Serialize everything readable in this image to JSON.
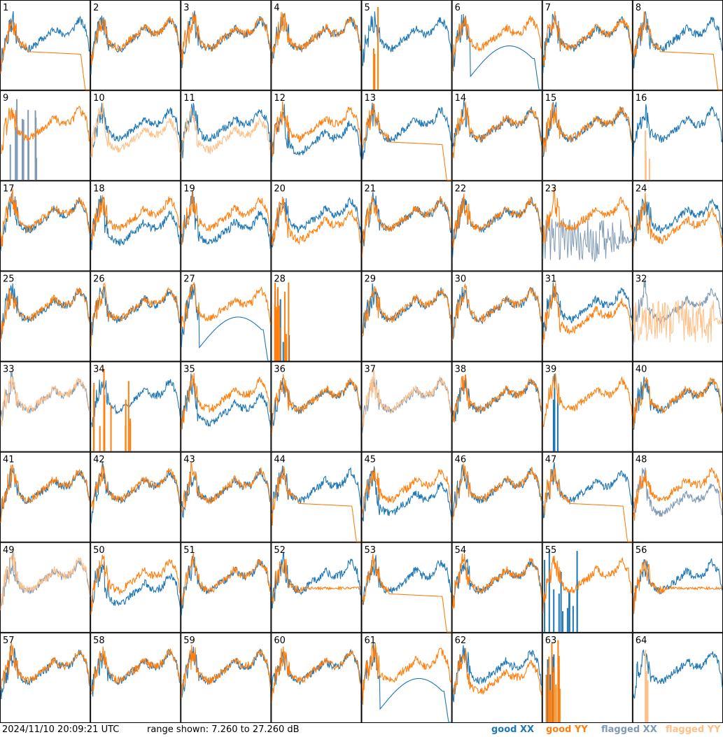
{
  "footer": {
    "timestamp": "2024/11/10 20:09:21 UTC",
    "range_text": "range shown: 7.260 to 27.260 dB"
  },
  "legend": [
    {
      "label": "good XX",
      "color": "#1f77b4"
    },
    {
      "label": "good YY",
      "color": "#ff7f0e"
    },
    {
      "label": "flagged XX",
      "color": "#7f9ab5"
    },
    {
      "label": "flagged YY",
      "color": "#ffbf86"
    }
  ],
  "chart_data": {
    "type": "line",
    "layout": "small-multiples 8x8",
    "x_axis": "frequency channel (unlabeled)",
    "y_range_db": [
      7.26,
      27.26
    ],
    "panel_labels": [
      "1",
      "2",
      "3",
      "4",
      "5",
      "6",
      "7",
      "8",
      "9",
      "10",
      "11",
      "12",
      "13",
      "14",
      "15",
      "16",
      "17",
      "18",
      "19",
      "20",
      "21",
      "22",
      "23",
      "24",
      "25",
      "26",
      "27",
      "28",
      "29",
      "30",
      "31",
      "32",
      "33",
      "34",
      "35",
      "36",
      "37",
      "38",
      "39",
      "40",
      "41",
      "42",
      "43",
      "44",
      "45",
      "46",
      "47",
      "48",
      "49",
      "50",
      "51",
      "52",
      "53",
      "54",
      "55",
      "56",
      "57",
      "58",
      "59",
      "60",
      "61",
      "62",
      "63",
      "64"
    ],
    "panels": {
      "1": {
        "xx": "good",
        "yy": "good",
        "pattern": "yy-rolloff"
      },
      "5": {
        "xx": "good",
        "yy": "good",
        "pattern": "yy-spike"
      },
      "6": {
        "xx": "good",
        "yy": "good",
        "pattern": "xx-dip"
      },
      "8": {
        "xx": "good",
        "yy": "good",
        "pattern": "yy-rolloff"
      },
      "9": {
        "xx": "flagged",
        "yy": "good",
        "pattern": "xx-spikes"
      },
      "10": {
        "xx": "good",
        "yy": "flagged",
        "pattern": "yy-lower"
      },
      "11": {
        "xx": "good",
        "yy": "flagged",
        "pattern": "yy-lower"
      },
      "12": {
        "xx": "good",
        "yy": "good",
        "pattern": "xx-lower"
      },
      "13": {
        "xx": "good",
        "yy": "good",
        "pattern": "yy-rolloff"
      },
      "16": {
        "xx": "good",
        "yy": "flagged",
        "pattern": "yy-spike"
      },
      "18": {
        "xx": "good",
        "yy": "good",
        "pattern": "xx-lower"
      },
      "19": {
        "xx": "good",
        "yy": "good",
        "pattern": "xx-lower"
      },
      "20": {
        "xx": "good",
        "yy": "good",
        "pattern": "yy-lower"
      },
      "23": {
        "xx": "flagged",
        "yy": "good",
        "pattern": "xx-noise"
      },
      "24": {
        "xx": "good",
        "yy": "good",
        "pattern": "yy-lower"
      },
      "27": {
        "xx": "good",
        "yy": "good",
        "pattern": "xx-dip"
      },
      "28": {
        "xx": "good",
        "yy": "good",
        "pattern": "spikes-only"
      },
      "31": {
        "xx": "good",
        "yy": "good",
        "pattern": "yy-lower"
      },
      "32": {
        "xx": "flagged",
        "yy": "flagged",
        "pattern": "yy-noise"
      },
      "33": {
        "xx": "flagged",
        "yy": "flagged",
        "pattern": "normal"
      },
      "34": {
        "xx": "good",
        "yy": "good",
        "pattern": "yy-spikes"
      },
      "35": {
        "xx": "good",
        "yy": "good",
        "pattern": "xx-lower"
      },
      "37": {
        "xx": "flagged",
        "yy": "flagged",
        "pattern": "normal"
      },
      "39": {
        "xx": "good",
        "yy": "good",
        "pattern": "xx-spike"
      },
      "44": {
        "xx": "good",
        "yy": "good",
        "pattern": "yy-rolloff"
      },
      "45": {
        "xx": "good",
        "yy": "good",
        "pattern": "xx-lower"
      },
      "47": {
        "xx": "good",
        "yy": "good",
        "pattern": "yy-rolloff"
      },
      "48": {
        "xx": "flagged",
        "yy": "good",
        "pattern": "xx-lower"
      },
      "49": {
        "xx": "flagged",
        "yy": "flagged",
        "pattern": "normal"
      },
      "50": {
        "xx": "good",
        "yy": "good",
        "pattern": "xx-lower"
      },
      "52": {
        "xx": "good",
        "yy": "good",
        "pattern": "yy-flat"
      },
      "53": {
        "xx": "good",
        "yy": "good",
        "pattern": "yy-rolloff"
      },
      "55": {
        "xx": "good",
        "yy": "good",
        "pattern": "xx-spikes"
      },
      "56": {
        "xx": "good",
        "yy": "good",
        "pattern": "yy-flat"
      },
      "61": {
        "xx": "good",
        "yy": "good",
        "pattern": "xx-dip"
      },
      "62": {
        "xx": "good",
        "yy": "good",
        "pattern": "yy-lower"
      },
      "63": {
        "xx": "good",
        "yy": "good",
        "pattern": "spikes-only"
      },
      "64": {
        "xx": "good",
        "yy": "flagged",
        "pattern": "yy-spike"
      }
    },
    "default_panel": {
      "xx": "good",
      "yy": "good",
      "pattern": "normal"
    }
  }
}
